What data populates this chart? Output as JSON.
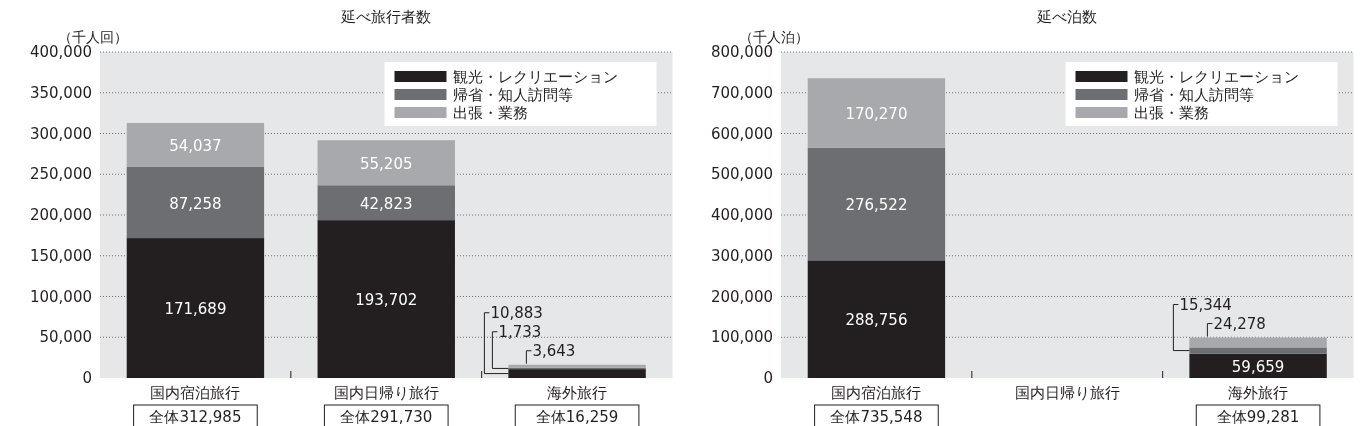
{
  "chart_data": [
    {
      "type": "bar",
      "title": "延べ旅行者数",
      "ylabel": "（千人回）",
      "categories": [
        "国内宿泊旅行",
        "国内日帰り旅行",
        "海外旅行"
      ],
      "stacked": true,
      "ylim": [
        0,
        400000
      ],
      "yticks": [
        {
          "value": 0,
          "label": "0"
        },
        {
          "value": 50000,
          "label": "50,000"
        },
        {
          "value": 100000,
          "label": "100,000"
        },
        {
          "value": 150000,
          "label": "150,000"
        },
        {
          "value": 200000,
          "label": "200,000"
        },
        {
          "value": 250000,
          "label": "250,000"
        },
        {
          "value": 300000,
          "label": "300,000"
        },
        {
          "value": 350000,
          "label": "350,000"
        },
        {
          "value": 400000,
          "label": "400,000"
        }
      ],
      "grid": "y",
      "legend": "top right",
      "totals": [
        "全体312,985",
        "全体291,730",
        "全体16,259"
      ],
      "series": [
        {
          "name": "観光・レクリエーション",
          "color": "#231f20",
          "values": [
            171689,
            193702,
            10883
          ],
          "value_labels": [
            "171,689",
            "193,702",
            "10,883"
          ]
        },
        {
          "name": "帰省・知人訪問等",
          "color": "#6d6e71",
          "values": [
            87258,
            42823,
            1733
          ],
          "value_labels": [
            "87,258",
            "42,823",
            "1,733"
          ]
        },
        {
          "name": "出張・業務",
          "color": "#a7a9ac",
          "values": [
            54037,
            55205,
            3643
          ],
          "value_labels": [
            "54,037",
            "55,205",
            "3,643"
          ]
        }
      ]
    },
    {
      "type": "bar",
      "title": "延べ泊数",
      "ylabel": "（千人泊）",
      "categories": [
        "国内宿泊旅行",
        "国内日帰り旅行",
        "海外旅行"
      ],
      "stacked": true,
      "ylim": [
        0,
        800000
      ],
      "yticks": [
        {
          "value": 0,
          "label": "0"
        },
        {
          "value": 100000,
          "label": "100,000"
        },
        {
          "value": 200000,
          "label": "200,000"
        },
        {
          "value": 300000,
          "label": "300,000"
        },
        {
          "value": 400000,
          "label": "400,000"
        },
        {
          "value": 500000,
          "label": "500,000"
        },
        {
          "value": 600000,
          "label": "600,000"
        },
        {
          "value": 700000,
          "label": "700,000"
        },
        {
          "value": 800000,
          "label": "800,000"
        }
      ],
      "grid": "y",
      "legend": "top right",
      "totals": [
        "全体735,548",
        null,
        "全体99,281"
      ],
      "series": [
        {
          "name": "観光・レクリエーション",
          "color": "#231f20",
          "values": [
            288756,
            null,
            59659
          ],
          "value_labels": [
            "288,756",
            null,
            "59,659"
          ]
        },
        {
          "name": "帰省・知人訪問等",
          "color": "#6d6e71",
          "values": [
            276522,
            null,
            15344
          ],
          "value_labels": [
            "276,522",
            null,
            "15,344"
          ]
        },
        {
          "name": "出張・業務",
          "color": "#a7a9ac",
          "values": [
            170270,
            null,
            24278
          ],
          "value_labels": [
            "170,270",
            null,
            "24,278"
          ]
        }
      ]
    }
  ]
}
